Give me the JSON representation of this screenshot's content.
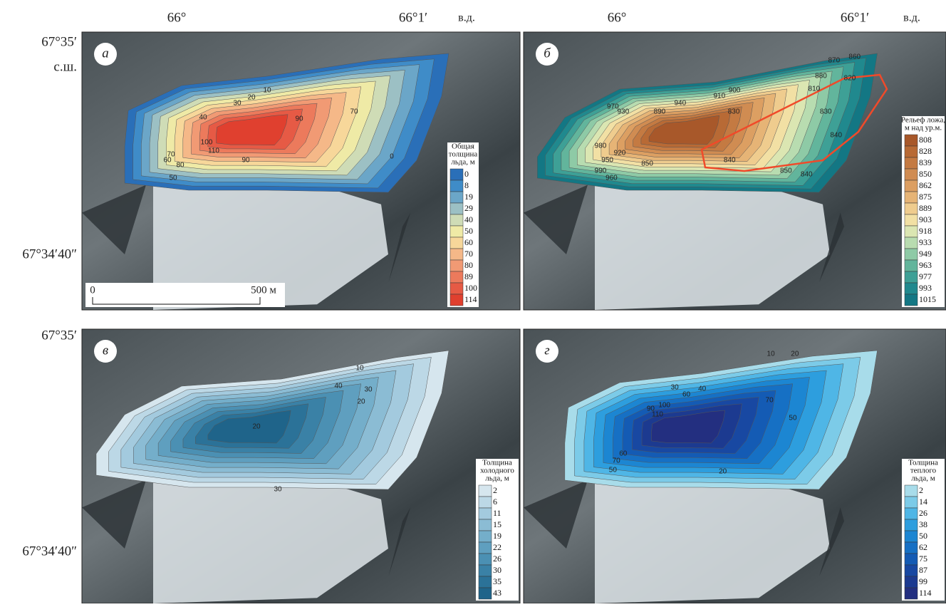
{
  "axes": {
    "lon_left": "66°",
    "lon_right": "66°1′",
    "lon_suffix": "в.д.",
    "lat_top": "67°35′",
    "lat_suffix": "с.ш.",
    "lat_bottom": "67°34′40″"
  },
  "scale_bar": {
    "start": "0",
    "end": "500 м"
  },
  "panels": [
    {
      "letter": "а",
      "legend_title": [
        "Общая",
        "толщина",
        "льда, м"
      ],
      "legend_values": [
        0,
        8,
        19,
        29,
        40,
        50,
        60,
        70,
        80,
        89,
        100,
        114
      ],
      "legend_colors": [
        "#2a6fb8",
        "#3f8cc8",
        "#6ba6c8",
        "#9cc0c4",
        "#cfdcb6",
        "#efeaa6",
        "#f7d79a",
        "#f5b888",
        "#f19a74",
        "#ec7a5c",
        "#e65a45",
        "#e0402f"
      ],
      "contour_labels": [
        10,
        20,
        30,
        40,
        70,
        90,
        100,
        110,
        90,
        70,
        60,
        80,
        50,
        0
      ]
    },
    {
      "letter": "б",
      "legend_title": [
        "Рельеф ложа,",
        "м над ур.м."
      ],
      "legend_values": [
        808,
        828,
        839,
        850,
        862,
        875,
        889,
        903,
        918,
        933,
        949,
        963,
        977,
        993,
        1015
      ],
      "legend_colors": [
        "#a8582a",
        "#b86a35",
        "#c47a42",
        "#d08c52",
        "#dc9f62",
        "#e6b476",
        "#efcc8e",
        "#f2e0a4",
        "#dbe6b2",
        "#b8dcb0",
        "#8ecaa6",
        "#62b59c",
        "#3ea096",
        "#20898e",
        "#137784"
      ],
      "contour_labels": [
        870,
        860,
        880,
        820,
        810,
        900,
        910,
        940,
        970,
        930,
        890,
        830,
        830,
        840,
        840,
        850,
        850,
        840,
        980,
        950,
        990,
        960,
        920
      ]
    },
    {
      "letter": "в",
      "legend_title": [
        "Толщина",
        "холодного",
        "льда, м"
      ],
      "legend_values": [
        2,
        6,
        11,
        15,
        19,
        22,
        26,
        30,
        35,
        43
      ],
      "legend_colors": [
        "#d6e6ee",
        "#bcd8e6",
        "#a3cade",
        "#8bbcd4",
        "#74aeca",
        "#5f9fbf",
        "#4b90b3",
        "#3a81a6",
        "#2b7298",
        "#1f648a"
      ],
      "contour_labels": [
        10,
        40,
        30,
        20,
        20,
        30
      ]
    },
    {
      "letter": "г",
      "legend_title": [
        "Толщина",
        "теплого",
        "льда, м"
      ],
      "legend_values": [
        2,
        14,
        26,
        38,
        50,
        62,
        75,
        87,
        99,
        114
      ],
      "legend_colors": [
        "#a8dcea",
        "#7ccbe8",
        "#4fb6e6",
        "#2d9ede",
        "#1c86d2",
        "#1670c4",
        "#145bb4",
        "#1848a2",
        "#1c3a90",
        "#232f80"
      ],
      "contour_labels": [
        10,
        20,
        30,
        60,
        40,
        70,
        50,
        90,
        100,
        110,
        70,
        60,
        50,
        20
      ]
    }
  ]
}
